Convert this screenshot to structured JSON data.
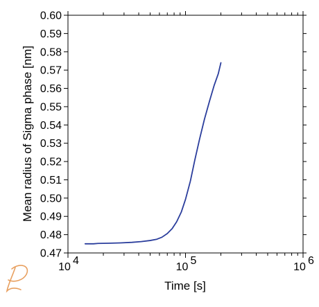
{
  "chart_data": {
    "type": "line",
    "xlabel": "Time [s]",
    "ylabel": "Mean radius of Sigma phase [nm]",
    "xscale": "log",
    "xlim": [
      10000,
      1000000
    ],
    "ylim": [
      0.47,
      0.6
    ],
    "grid": false,
    "x_major_ticks": [
      {
        "value": 10000,
        "base": "10",
        "exp": "4"
      },
      {
        "value": 100000,
        "base": "10",
        "exp": "5"
      },
      {
        "value": 1000000,
        "base": "10",
        "exp": "6"
      }
    ],
    "y_ticks": [
      {
        "value": 0.47,
        "label": "0.47"
      },
      {
        "value": 0.48,
        "label": "0.48"
      },
      {
        "value": 0.49,
        "label": "0.49"
      },
      {
        "value": 0.5,
        "label": "0.50"
      },
      {
        "value": 0.51,
        "label": "0.51"
      },
      {
        "value": 0.52,
        "label": "0.52"
      },
      {
        "value": 0.53,
        "label": "0.53"
      },
      {
        "value": 0.54,
        "label": "0.54"
      },
      {
        "value": 0.55,
        "label": "0.55"
      },
      {
        "value": 0.56,
        "label": "0.56"
      },
      {
        "value": 0.57,
        "label": "0.57"
      },
      {
        "value": 0.58,
        "label": "0.58"
      },
      {
        "value": 0.59,
        "label": "0.59"
      },
      {
        "value": 0.6,
        "label": "0.60"
      }
    ],
    "series": [
      {
        "color": "#2a3d9c",
        "points": [
          [
            14000,
            0.475
          ],
          [
            16500,
            0.475
          ],
          [
            18000,
            0.4752
          ],
          [
            22000,
            0.4753
          ],
          [
            28000,
            0.4755
          ],
          [
            35000,
            0.4758
          ],
          [
            42000,
            0.4762
          ],
          [
            50000,
            0.4768
          ],
          [
            57000,
            0.4775
          ],
          [
            63000,
            0.4786
          ],
          [
            70000,
            0.4806
          ],
          [
            77000,
            0.4833
          ],
          [
            84000,
            0.487
          ],
          [
            92000,
            0.4923
          ],
          [
            100000,
            0.4993
          ],
          [
            110000,
            0.5093
          ],
          [
            120000,
            0.5208
          ],
          [
            132000,
            0.5325
          ],
          [
            145000,
            0.5432
          ],
          [
            160000,
            0.553
          ],
          [
            175000,
            0.5615
          ],
          [
            190000,
            0.568
          ],
          [
            200000,
            0.574
          ]
        ]
      }
    ]
  }
}
